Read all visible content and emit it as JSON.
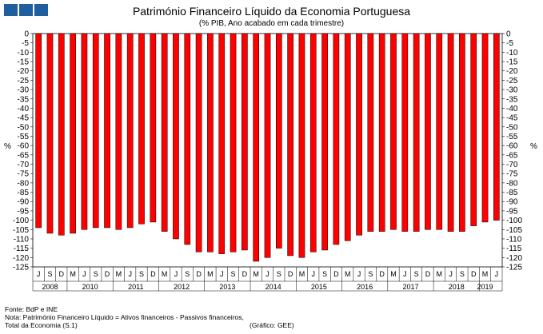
{
  "header": {
    "logo_color": "#1f5f9e"
  },
  "chart_data": {
    "type": "bar",
    "title": "Património Financeiro Líquido da Economia Portuguesa",
    "subtitle": "(% PIB, Ano acabado em cada trimestre)",
    "ylabel_left": "%",
    "ylabel_right": "%",
    "ylim": [
      -125,
      0
    ],
    "ytick_step": 5,
    "bar_color": "#ff0000",
    "grid": false,
    "quarter_labels": [
      "J",
      "S",
      "D",
      "M",
      "J",
      "S",
      "D",
      "M",
      "J",
      "S",
      "D",
      "M",
      "J",
      "S",
      "D",
      "M",
      "J",
      "S",
      "D",
      "M",
      "J",
      "S",
      "D",
      "M",
      "J",
      "S",
      "D",
      "M",
      "J",
      "S",
      "D",
      "M",
      "J",
      "S",
      "D",
      "M",
      "J",
      "S",
      "D",
      "M",
      "J",
      "S",
      "D",
      "M",
      "J",
      "S",
      "D",
      "M"
    ],
    "years": [
      {
        "label": "2008",
        "start": 0,
        "count": 3
      },
      {
        "label": "2010",
        "start": 3,
        "count": 4
      },
      {
        "label": "2011",
        "start": 7,
        "count": 4
      },
      {
        "label": "2012",
        "start": 11,
        "count": 4
      },
      {
        "label": "2013",
        "start": 15,
        "count": 4
      },
      {
        "label": "2014",
        "start": 19,
        "count": 4
      },
      {
        "label": "2015",
        "start": 23,
        "count": 4
      },
      {
        "label": "2016",
        "start": 27,
        "count": 4
      },
      {
        "label": "2017",
        "start": 31,
        "count": 4
      },
      {
        "label": "2018",
        "start": 35,
        "count": 4
      },
      {
        "label": "2019",
        "start": 39,
        "count": 1
      }
    ],
    "values": [
      -104,
      -107,
      -108,
      -107,
      -105,
      -104,
      -104,
      -105,
      -104,
      -102,
      -101,
      -106,
      -110,
      -113,
      -117,
      -117,
      -118,
      -117,
      -116,
      -122,
      -120,
      -115,
      -119,
      -120,
      -117,
      -116,
      -113,
      -111,
      -108,
      -106,
      -106,
      -105,
      -106,
      -106,
      -105,
      -105,
      -106,
      -106,
      -103,
      -101,
      -100
    ]
  },
  "footer": {
    "source": "Fonte: BdP e INE",
    "note": "Nota: Património Financeiro Líquido = Ativos financeiros - Passivos financeiros,",
    "total": "Total da Economia (S.1)",
    "credit": "(Gráfico: GEE)"
  }
}
